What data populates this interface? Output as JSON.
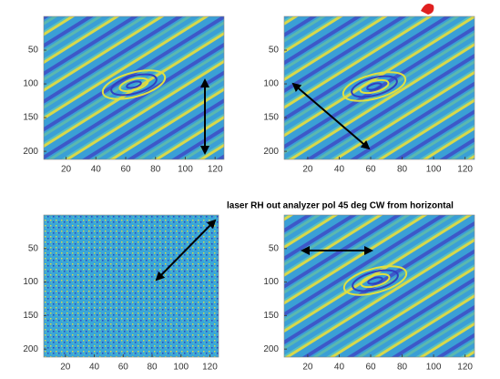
{
  "chart_data": [
    {
      "type": "image",
      "xlim": [
        5,
        126
      ],
      "ylim": [
        0,
        212
      ],
      "xticks": [
        20,
        40,
        60,
        80,
        100,
        120
      ],
      "yticks": [
        50,
        100,
        150,
        200
      ]
    },
    {
      "type": "image",
      "xlim": [
        5,
        126
      ],
      "ylim": [
        0,
        212
      ],
      "xticks": [
        20,
        40,
        60,
        80,
        100,
        120
      ],
      "yticks": [
        50,
        100,
        150,
        200
      ]
    },
    {
      "type": "image",
      "xlim": [
        5,
        126
      ],
      "ylim": [
        0,
        212
      ],
      "xticks": [
        20,
        40,
        60,
        80,
        100,
        120
      ],
      "yticks": [
        50,
        100,
        150,
        200
      ]
    },
    {
      "type": "image",
      "xlim": [
        5,
        126
      ],
      "ylim": [
        0,
        212
      ],
      "xticks": [
        20,
        40,
        60,
        80,
        100,
        120
      ],
      "yticks": [
        50,
        100,
        150,
        200
      ],
      "annotation": "laser RH out analyzer  pol 45 deg CW from horizontal"
    }
  ]
}
